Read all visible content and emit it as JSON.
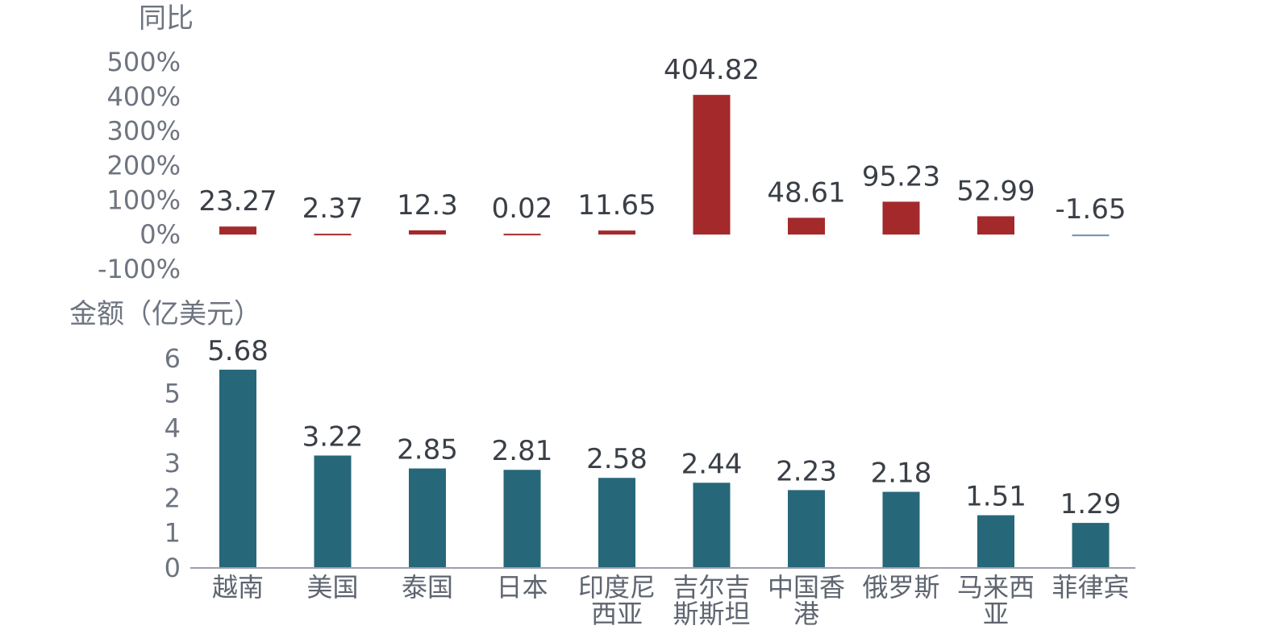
{
  "chart_data": [
    {
      "type": "bar",
      "title": "同比",
      "yticks": [
        "500%",
        "400%",
        "300%",
        "200%",
        "100%",
        "0%",
        "-100%"
      ],
      "ylim": [
        -100,
        500
      ],
      "categories": [
        "越南",
        "美国",
        "泰国",
        "日本",
        "印度尼西亚",
        "吉尔吉斯斯坦",
        "中国香港",
        "俄罗斯",
        "马来西亚",
        "菲律宾"
      ],
      "values": [
        23.27,
        2.37,
        12.3,
        0.02,
        11.65,
        404.82,
        48.61,
        95.23,
        52.99,
        -1.65
      ],
      "value_labels": [
        "23.27",
        "2.37",
        "12.3",
        "0.02",
        "11.65",
        "404.82",
        "48.61",
        "95.23",
        "52.99",
        "-1.65"
      ],
      "colors": {
        "positive": "#a3292b",
        "negative": "#6f8fb5"
      },
      "grid": false
    },
    {
      "type": "bar",
      "title": "金额（亿美元）",
      "yticks": [
        "6",
        "5",
        "4",
        "3",
        "2",
        "1",
        "0"
      ],
      "ylim": [
        0,
        6
      ],
      "categories": [
        "越南",
        "美国",
        "泰国",
        "日本",
        "印度尼西亚",
        "吉尔吉斯斯坦",
        "中国香港",
        "俄罗斯",
        "马来西亚",
        "菲律宾"
      ],
      "category_lines": [
        [
          "越南"
        ],
        [
          "美国"
        ],
        [
          "泰国"
        ],
        [
          "日本"
        ],
        [
          "印度尼",
          "西亚"
        ],
        [
          "吉尔吉",
          "斯斯坦"
        ],
        [
          "中国香",
          "港"
        ],
        [
          "俄罗斯"
        ],
        [
          "马来西",
          "亚"
        ],
        [
          "菲律宾"
        ]
      ],
      "values": [
        5.68,
        3.22,
        2.85,
        2.81,
        2.58,
        2.44,
        2.23,
        2.18,
        1.51,
        1.29
      ],
      "value_labels": [
        "5.68",
        "3.22",
        "2.85",
        "2.81",
        "2.58",
        "2.44",
        "2.23",
        "2.18",
        "1.51",
        "1.29"
      ],
      "colors": {
        "bar": "#27677a"
      },
      "grid": false
    }
  ]
}
